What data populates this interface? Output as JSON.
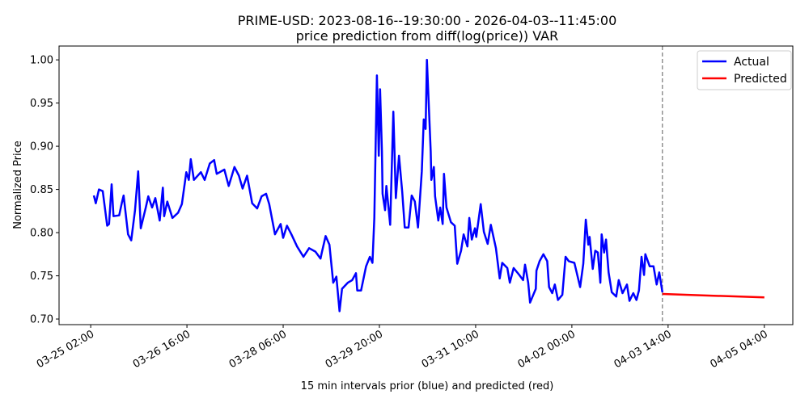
{
  "chart_data": {
    "type": "line",
    "title": "PRIME-USD: 2023-08-16--19:30:00 - 2026-04-03--11:45:00",
    "subtitle": "price prediction from diff(log(price)) VAR",
    "xlabel": "15 min intervals prior (blue) and predicted (red)",
    "ylabel": "Normalized Price",
    "year": 2026,
    "xlim": [
      "03-24 13:30",
      "04-05 15:15"
    ],
    "ylim": [
      0.6935,
      1.016
    ],
    "yticks": [
      "0.70",
      "0.75",
      "0.80",
      "0.85",
      "0.90",
      "0.95",
      "1.00"
    ],
    "xticks": [
      "03-25 02:00",
      "03-26 16:00",
      "03-28 06:00",
      "03-29 20:00",
      "03-31 10:00",
      "04-02 00:00",
      "04-03 14:00",
      "04-05 04:00"
    ],
    "grid": false,
    "legend_position": "top-right",
    "vline": {
      "x": "04-03 11:45",
      "style": "dashed",
      "color": "#777777"
    },
    "series": [
      {
        "name": "Actual",
        "color": "#0000ff",
        "points": [
          [
            "03-25 03:15",
            0.843
          ],
          [
            "03-25 04:00",
            0.834
          ],
          [
            "03-25 05:15",
            0.85
          ],
          [
            "03-25 06:45",
            0.848
          ],
          [
            "03-25 08:30",
            0.808
          ],
          [
            "03-25 09:15",
            0.81
          ],
          [
            "03-25 10:15",
            0.856
          ],
          [
            "03-25 11:00",
            0.819
          ],
          [
            "03-25 13:15",
            0.82
          ],
          [
            "03-25 14:15",
            0.834
          ],
          [
            "03-25 15:00",
            0.843
          ],
          [
            "03-25 16:45",
            0.798
          ],
          [
            "03-25 18:00",
            0.791
          ],
          [
            "03-25 19:30",
            0.826
          ],
          [
            "03-25 20:45",
            0.871
          ],
          [
            "03-25 21:45",
            0.805
          ],
          [
            "03-25 23:45",
            0.829
          ],
          [
            "03-26 00:45",
            0.842
          ],
          [
            "03-26 02:15",
            0.829
          ],
          [
            "03-26 03:30",
            0.84
          ],
          [
            "03-26 05:15",
            0.814
          ],
          [
            "03-26 06:30",
            0.852
          ],
          [
            "03-26 07:00",
            0.819
          ],
          [
            "03-26 08:15",
            0.836
          ],
          [
            "03-26 10:15",
            0.817
          ],
          [
            "03-26 12:30",
            0.823
          ],
          [
            "03-26 14:00",
            0.833
          ],
          [
            "03-26 15:45",
            0.87
          ],
          [
            "03-26 16:45",
            0.861
          ],
          [
            "03-26 17:30",
            0.885
          ],
          [
            "03-26 18:45",
            0.861
          ],
          [
            "03-26 21:30",
            0.87
          ],
          [
            "03-26 23:00",
            0.861
          ],
          [
            "03-27 01:00",
            0.88
          ],
          [
            "03-27 02:45",
            0.884
          ],
          [
            "03-27 03:45",
            0.868
          ],
          [
            "03-27 06:45",
            0.873
          ],
          [
            "03-27 08:30",
            0.854
          ],
          [
            "03-27 10:45",
            0.876
          ],
          [
            "03-27 12:30",
            0.866
          ],
          [
            "03-27 14:00",
            0.851
          ],
          [
            "03-27 15:45",
            0.866
          ],
          [
            "03-27 17:45",
            0.834
          ],
          [
            "03-27 19:45",
            0.828
          ],
          [
            "03-27 21:30",
            0.842
          ],
          [
            "03-27 23:15",
            0.845
          ],
          [
            "03-28 00:30",
            0.833
          ],
          [
            "03-28 02:45",
            0.798
          ],
          [
            "03-28 05:00",
            0.81
          ],
          [
            "03-28 06:00",
            0.794
          ],
          [
            "03-28 07:30",
            0.808
          ],
          [
            "03-28 09:15",
            0.798
          ],
          [
            "03-28 11:30",
            0.784
          ],
          [
            "03-28 14:00",
            0.772
          ],
          [
            "03-28 16:15",
            0.782
          ],
          [
            "03-28 18:45",
            0.778
          ],
          [
            "03-28 20:45",
            0.77
          ],
          [
            "03-28 21:15",
            0.777
          ],
          [
            "03-28 22:45",
            0.796
          ],
          [
            "03-29 00:15",
            0.786
          ],
          [
            "03-29 01:45",
            0.742
          ],
          [
            "03-29 03:00",
            0.749
          ],
          [
            "03-29 04:15",
            0.709
          ],
          [
            "03-29 05:15",
            0.735
          ],
          [
            "03-29 07:30",
            0.742
          ],
          [
            "03-29 09:15",
            0.745
          ],
          [
            "03-29 10:45",
            0.753
          ],
          [
            "03-29 11:15",
            0.733
          ],
          [
            "03-29 12:45",
            0.733
          ],
          [
            "03-29 14:45",
            0.761
          ],
          [
            "03-29 16:15",
            0.772
          ],
          [
            "03-29 17:15",
            0.765
          ],
          [
            "03-29 18:00",
            0.817
          ],
          [
            "03-29 19:00",
            0.982
          ],
          [
            "03-29 19:45",
            0.889
          ],
          [
            "03-29 20:15",
            0.966
          ],
          [
            "03-29 21:00",
            0.894
          ],
          [
            "03-29 21:15",
            0.845
          ],
          [
            "03-29 22:15",
            0.826
          ],
          [
            "03-29 22:45",
            0.854
          ],
          [
            "03-30 00:15",
            0.809
          ],
          [
            "03-30 01:30",
            0.94
          ],
          [
            "03-30 02:30",
            0.84
          ],
          [
            "03-30 03:45",
            0.889
          ],
          [
            "03-30 05:00",
            0.847
          ],
          [
            "03-30 06:00",
            0.806
          ],
          [
            "03-30 07:30",
            0.806
          ],
          [
            "03-30 08:45",
            0.843
          ],
          [
            "03-30 10:00",
            0.836
          ],
          [
            "03-30 11:15",
            0.806
          ],
          [
            "03-30 12:45",
            0.871
          ],
          [
            "03-30 13:30",
            0.931
          ],
          [
            "03-30 14:15",
            0.92
          ],
          [
            "03-30 14:45",
            1.0
          ],
          [
            "03-30 16:15",
            0.894
          ],
          [
            "03-30 16:30",
            0.861
          ],
          [
            "03-30 17:30",
            0.876
          ],
          [
            "03-30 18:00",
            0.842
          ],
          [
            "03-30 19:15",
            0.814
          ],
          [
            "03-30 20:00",
            0.829
          ],
          [
            "03-30 21:00",
            0.81
          ],
          [
            "03-30 21:30",
            0.868
          ],
          [
            "03-30 22:30",
            0.829
          ],
          [
            "03-31 00:15",
            0.812
          ],
          [
            "03-31 01:45",
            0.808
          ],
          [
            "03-31 02:45",
            0.764
          ],
          [
            "03-31 04:15",
            0.779
          ],
          [
            "03-31 05:15",
            0.798
          ],
          [
            "03-31 06:45",
            0.784
          ],
          [
            "03-31 07:30",
            0.817
          ],
          [
            "03-31 08:30",
            0.792
          ],
          [
            "03-31 09:45",
            0.805
          ],
          [
            "03-31 10:15",
            0.795
          ],
          [
            "03-31 12:00",
            0.833
          ],
          [
            "03-31 13:15",
            0.801
          ],
          [
            "03-31 14:45",
            0.787
          ],
          [
            "03-31 16:00",
            0.809
          ],
          [
            "03-31 18:00",
            0.782
          ],
          [
            "03-31 19:30",
            0.747
          ],
          [
            "03-31 20:30",
            0.765
          ],
          [
            "03-31 22:30",
            0.759
          ],
          [
            "03-31 23:30",
            0.742
          ],
          [
            "04-01 01:00",
            0.759
          ],
          [
            "04-01 03:15",
            0.751
          ],
          [
            "04-01 04:45",
            0.745
          ],
          [
            "04-01 05:30",
            0.763
          ],
          [
            "04-01 06:45",
            0.742
          ],
          [
            "04-01 07:30",
            0.719
          ],
          [
            "04-01 09:45",
            0.735
          ],
          [
            "04-01 10:00",
            0.756
          ],
          [
            "04-01 11:15",
            0.767
          ],
          [
            "04-01 12:45",
            0.775
          ],
          [
            "04-01 14:15",
            0.767
          ],
          [
            "04-01 15:00",
            0.737
          ],
          [
            "04-01 16:15",
            0.73
          ],
          [
            "04-01 17:15",
            0.74
          ],
          [
            "04-01 18:30",
            0.722
          ],
          [
            "04-01 20:15",
            0.728
          ],
          [
            "04-01 21:30",
            0.772
          ],
          [
            "04-01 22:45",
            0.767
          ],
          [
            "04-02 01:00",
            0.765
          ],
          [
            "04-02 03:15",
            0.737
          ],
          [
            "04-02 04:30",
            0.764
          ],
          [
            "04-02 05:30",
            0.815
          ],
          [
            "04-02 06:30",
            0.786
          ],
          [
            "04-02 07:00",
            0.795
          ],
          [
            "04-02 08:15",
            0.758
          ],
          [
            "04-02 09:15",
            0.779
          ],
          [
            "04-02 10:15",
            0.777
          ],
          [
            "04-02 11:15",
            0.742
          ],
          [
            "04-02 11:45",
            0.798
          ],
          [
            "04-02 12:45",
            0.777
          ],
          [
            "04-02 13:30",
            0.792
          ],
          [
            "04-02 14:30",
            0.754
          ],
          [
            "04-02 15:45",
            0.731
          ],
          [
            "04-02 17:30",
            0.726
          ],
          [
            "04-02 18:30",
            0.745
          ],
          [
            "04-02 20:00",
            0.73
          ],
          [
            "04-02 21:45",
            0.74
          ],
          [
            "04-02 22:45",
            0.721
          ],
          [
            "04-03 00:15",
            0.73
          ],
          [
            "04-03 01:30",
            0.722
          ],
          [
            "04-03 02:30",
            0.733
          ],
          [
            "04-03 03:30",
            0.772
          ],
          [
            "04-03 04:30",
            0.751
          ],
          [
            "04-03 05:00",
            0.775
          ],
          [
            "04-03 06:45",
            0.761
          ],
          [
            "04-03 08:15",
            0.761
          ],
          [
            "04-03 09:30",
            0.74
          ],
          [
            "04-03 10:30",
            0.754
          ],
          [
            "04-03 11:45",
            0.731
          ]
        ]
      },
      {
        "name": "Predicted",
        "color": "#ff0000",
        "points": [
          [
            "04-03 11:45",
            0.729
          ],
          [
            "04-04 08:00",
            0.727
          ],
          [
            "04-05 04:00",
            0.725
          ]
        ]
      }
    ]
  }
}
